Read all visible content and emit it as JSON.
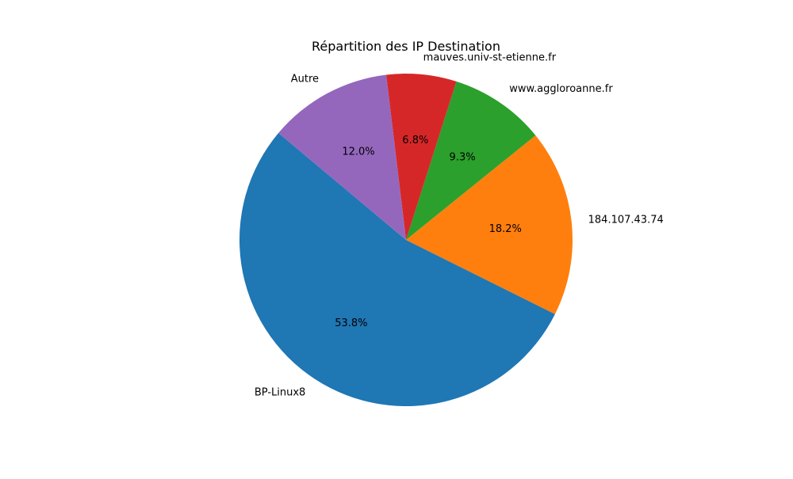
{
  "chart_data": {
    "type": "pie",
    "title": "Répartition des IP Destination",
    "slices": [
      {
        "label": "BP-Linux8",
        "value": 53.8,
        "pct_label": "53.8%",
        "color": "#1f77b4"
      },
      {
        "label": "184.107.43.74",
        "value": 18.2,
        "pct_label": "18.2%",
        "color": "#ff7f0e"
      },
      {
        "label": "www.aggloroanne.fr",
        "value": 9.3,
        "pct_label": "9.3%",
        "color": "#2ca02c"
      },
      {
        "label": "mauves.univ-st-etienne.fr",
        "value": 6.8,
        "pct_label": "6.8%",
        "color": "#d62728"
      },
      {
        "label": "Autre",
        "value": 12.0,
        "pct_label": "12.0%",
        "color": "#9467bd"
      }
    ],
    "start_angle_deg": 140,
    "direction": "counterclockwise",
    "legend": "none"
  }
}
